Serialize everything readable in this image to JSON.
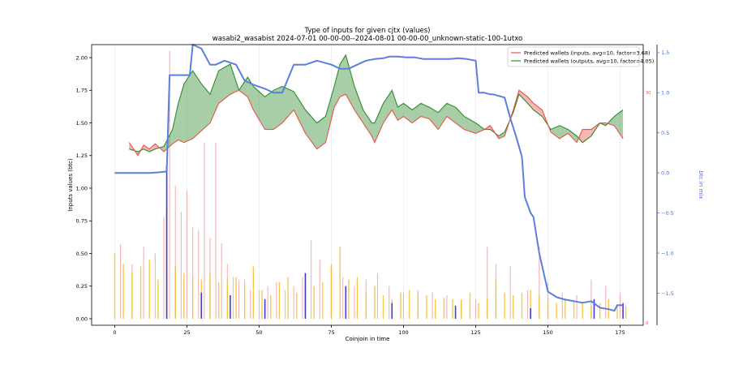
{
  "chart_data": {
    "type": "line",
    "title": "Type of inputs for given cjtx (values)",
    "subtitle": "wasabi2_wasabist 2024-07-01 00-00-00--2024-08-01 00-00-00_unknown-static-100-1utxo",
    "xlabel": "Coinjoin in time",
    "ylabel": "Inputs values (btc)",
    "y2label": "btc in mix",
    "xlim": [
      -8,
      183
    ],
    "ylim": [
      -0.05,
      2.1
    ],
    "y2lim": [
      -1.9,
      1.6
    ],
    "xticks": [
      "0",
      "25",
      "50",
      "75",
      "100",
      "125",
      "150",
      "175"
    ],
    "xtick_values": [
      0,
      25,
      50,
      75,
      100,
      125,
      150,
      175
    ],
    "yticks": [
      "0.00",
      "0.25",
      "0.50",
      "0.75",
      "1.00",
      "1.25",
      "1.50",
      "1.75",
      "2.00"
    ],
    "ytick_values": [
      0,
      0.25,
      0.5,
      0.75,
      1.0,
      1.25,
      1.5,
      1.75,
      2.0
    ],
    "y2ticks": [
      "−1.5",
      "−1.0",
      "−0.5",
      "0.0",
      "0.5",
      "1.0",
      "1.5"
    ],
    "y2tick_values": [
      -1.5,
      -1.0,
      -0.5,
      0.0,
      0.5,
      1.0,
      1.5
    ],
    "legend": {
      "placement": "top-right",
      "entries": [
        {
          "label": "Predicted wallets (inputs, avg=10, factor=3.68)",
          "color": "#e8534a"
        },
        {
          "label": "Predicted wallets (outputs, avg=10, factor=4.05)",
          "color": "#2e8b2e"
        }
      ]
    },
    "side_marks": [
      "30",
      "0"
    ],
    "series": [
      {
        "name": "Predicted wallets (inputs, avg=10, factor=3.68)",
        "axis": "left",
        "color": "#e8534a",
        "x": [
          5,
          8,
          10,
          12,
          14,
          17,
          20,
          22,
          24,
          27,
          30,
          33,
          36,
          40,
          43,
          46,
          48,
          52,
          55,
          58,
          62,
          66,
          70,
          73,
          76,
          78,
          80,
          83,
          86,
          89,
          90,
          93,
          96,
          98,
          100,
          103,
          106,
          109,
          112,
          115,
          118,
          121,
          125,
          128,
          130,
          133,
          135,
          138,
          140,
          143,
          145,
          148,
          151,
          154,
          157,
          160,
          162,
          165,
          168,
          170,
          173,
          176
        ],
        "values": [
          1.35,
          1.25,
          1.33,
          1.3,
          1.34,
          1.28,
          1.34,
          1.37,
          1.35,
          1.38,
          1.44,
          1.5,
          1.65,
          1.72,
          1.75,
          1.7,
          1.6,
          1.45,
          1.45,
          1.5,
          1.6,
          1.42,
          1.3,
          1.35,
          1.62,
          1.7,
          1.72,
          1.6,
          1.5,
          1.4,
          1.35,
          1.5,
          1.6,
          1.52,
          1.55,
          1.5,
          1.55,
          1.53,
          1.45,
          1.55,
          1.5,
          1.45,
          1.42,
          1.45,
          1.48,
          1.38,
          1.4,
          1.6,
          1.75,
          1.7,
          1.65,
          1.6,
          1.43,
          1.38,
          1.42,
          1.35,
          1.45,
          1.45,
          1.5,
          1.5,
          1.48,
          1.38
        ]
      },
      {
        "name": "Predicted wallets (outputs, avg=10, factor=4.05)",
        "axis": "left",
        "color": "#2e8b2e",
        "x": [
          5,
          8,
          10,
          12,
          14,
          17,
          20,
          22,
          24,
          27,
          30,
          33,
          36,
          40,
          43,
          46,
          48,
          52,
          55,
          58,
          62,
          66,
          70,
          73,
          76,
          78,
          80,
          83,
          86,
          89,
          90,
          93,
          96,
          98,
          100,
          103,
          106,
          109,
          112,
          115,
          118,
          121,
          125,
          128,
          130,
          133,
          135,
          138,
          140,
          143,
          145,
          148,
          151,
          154,
          157,
          160,
          162,
          165,
          168,
          170,
          173,
          176
        ],
        "values": [
          1.3,
          1.28,
          1.3,
          1.28,
          1.3,
          1.32,
          1.45,
          1.65,
          1.8,
          1.9,
          1.8,
          1.72,
          1.9,
          1.95,
          1.75,
          1.85,
          1.78,
          1.7,
          1.75,
          1.78,
          1.74,
          1.6,
          1.5,
          1.55,
          1.78,
          1.95,
          2.02,
          1.78,
          1.6,
          1.5,
          1.5,
          1.65,
          1.75,
          1.62,
          1.65,
          1.6,
          1.65,
          1.62,
          1.58,
          1.65,
          1.62,
          1.55,
          1.5,
          1.45,
          1.45,
          1.4,
          1.43,
          1.58,
          1.72,
          1.65,
          1.6,
          1.55,
          1.45,
          1.48,
          1.45,
          1.4,
          1.35,
          1.4,
          1.5,
          1.48,
          1.55,
          1.6
        ]
      },
      {
        "name": "btc in mix",
        "axis": "right",
        "color": "#5b7fde",
        "x": [
          0,
          4,
          8,
          12,
          16,
          18,
          19,
          22,
          24,
          26,
          27,
          30,
          33,
          35,
          38,
          42,
          45,
          48,
          52,
          55,
          58,
          62,
          66,
          70,
          75,
          78,
          81,
          84,
          87,
          90,
          93,
          95,
          98,
          101,
          104,
          107,
          110,
          113,
          116,
          119,
          122,
          125,
          126,
          128,
          130,
          131,
          133,
          135,
          137,
          139,
          141,
          142,
          144,
          145,
          147,
          150,
          153,
          156,
          159,
          162,
          165,
          168,
          171,
          173,
          174,
          176
        ],
        "values": [
          0.0,
          0.0,
          0.0,
          0.0,
          0.01,
          0.02,
          1.22,
          1.22,
          1.22,
          1.22,
          1.6,
          1.55,
          1.35,
          1.35,
          1.4,
          1.35,
          1.15,
          1.1,
          1.05,
          1.0,
          1.0,
          1.35,
          1.35,
          1.4,
          1.35,
          1.3,
          1.3,
          1.35,
          1.4,
          1.42,
          1.43,
          1.45,
          1.45,
          1.44,
          1.44,
          1.42,
          1.42,
          1.42,
          1.42,
          1.43,
          1.42,
          1.4,
          1.0,
          1.0,
          0.98,
          0.98,
          0.96,
          0.94,
          0.68,
          0.45,
          0.2,
          -0.3,
          -0.5,
          -0.55,
          -1.0,
          -1.48,
          -1.55,
          -1.58,
          -1.6,
          -1.62,
          -1.6,
          -1.68,
          -1.7,
          -1.72,
          -1.65,
          -1.65
        ]
      },
      {
        "name": "input values (yellow)",
        "axis": "left",
        "color": "#f2c12e",
        "x": [
          0,
          3,
          6,
          9,
          12,
          15,
          18,
          21,
          24,
          27,
          30,
          33,
          36,
          39,
          42,
          45,
          48,
          51,
          54,
          57,
          60,
          63,
          66,
          69,
          72,
          75,
          78,
          81,
          84,
          87,
          90,
          93,
          96,
          99,
          102,
          105,
          108,
          111,
          114,
          117,
          120,
          123,
          126,
          129,
          132,
          135,
          138,
          141,
          144,
          147,
          150,
          153,
          156,
          159,
          162,
          165,
          168,
          171,
          174,
          177
        ],
        "values": [
          0.5,
          0.42,
          0.35,
          0.4,
          0.45,
          0.3,
          0.85,
          0.4,
          0.35,
          0.32,
          0.3,
          0.35,
          0.28,
          0.3,
          0.32,
          0.25,
          0.4,
          0.22,
          0.18,
          0.28,
          0.32,
          0.2,
          0.35,
          0.25,
          0.28,
          0.4,
          0.55,
          0.3,
          0.32,
          0.2,
          0.25,
          0.18,
          0.15,
          0.2,
          0.22,
          0.2,
          0.18,
          0.15,
          0.16,
          0.15,
          0.14,
          0.2,
          0.12,
          0.15,
          0.3,
          0.2,
          0.18,
          0.2,
          0.22,
          0.18,
          0.15,
          0.12,
          0.15,
          0.13,
          0.12,
          0.1,
          0.12,
          0.15,
          0.1,
          0.1
        ]
      },
      {
        "name": "input values (blue)",
        "axis": "left",
        "color": "#2a2ad8",
        "x": [
          18,
          30,
          40,
          52,
          66,
          80,
          96,
          118,
          144,
          166,
          176
        ],
        "values": [
          1.18,
          0.2,
          0.18,
          0.15,
          0.35,
          0.25,
          0.12,
          0.1,
          0.08,
          0.15,
          0.12
        ]
      },
      {
        "name": "input values (pink)",
        "axis": "left",
        "color": "#f0a0a0",
        "x": [
          2,
          6,
          10,
          14,
          17,
          19,
          21,
          23,
          25,
          27,
          29,
          31,
          33,
          35,
          37,
          39,
          41,
          43,
          45,
          47,
          50,
          53,
          56,
          59,
          62,
          65,
          68,
          71,
          75,
          79,
          83,
          87,
          91,
          95,
          100,
          105,
          110,
          115,
          120,
          125,
          129,
          132,
          137,
          143,
          147,
          150,
          155,
          160,
          165,
          170,
          175
        ],
        "values": [
          0.57,
          0.42,
          0.55,
          0.5,
          0.78,
          2.05,
          1.02,
          0.82,
          0.98,
          0.7,
          0.68,
          1.35,
          0.62,
          1.35,
          0.58,
          0.42,
          0.32,
          0.3,
          0.3,
          0.22,
          0.22,
          0.25,
          0.28,
          0.22,
          0.25,
          0.32,
          0.6,
          0.45,
          0.42,
          0.32,
          0.25,
          0.3,
          0.35,
          0.25,
          0.2,
          0.22,
          0.2,
          0.18,
          0.15,
          0.15,
          0.55,
          0.42,
          0.4,
          0.22,
          0.55,
          0.28,
          0.2,
          0.18,
          0.3,
          0.25,
          0.2
        ]
      }
    ]
  }
}
